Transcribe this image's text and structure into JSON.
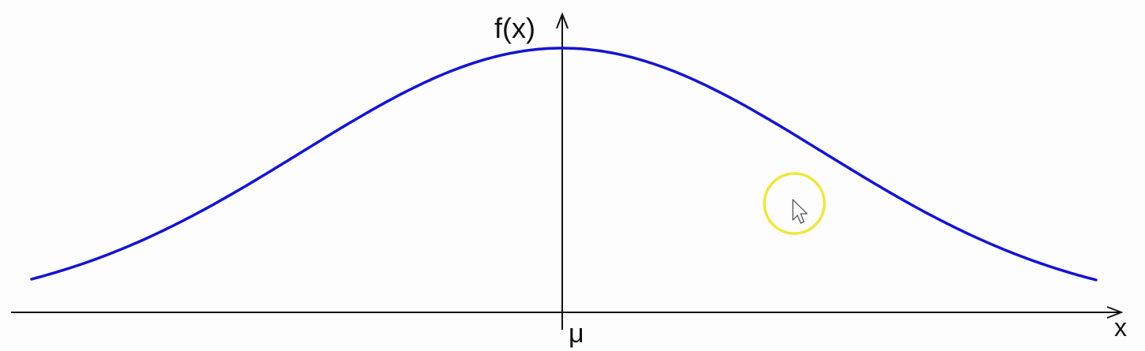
{
  "axes": {
    "y_label": "f(x)",
    "x_label": "x",
    "mean_label": "μ"
  },
  "curve": {
    "type": "normal-distribution-bell-curve",
    "color": "#1414d2"
  },
  "cursor": {
    "highlight_color": "#f0e640",
    "icon": "mouse-pointer-icon"
  }
}
